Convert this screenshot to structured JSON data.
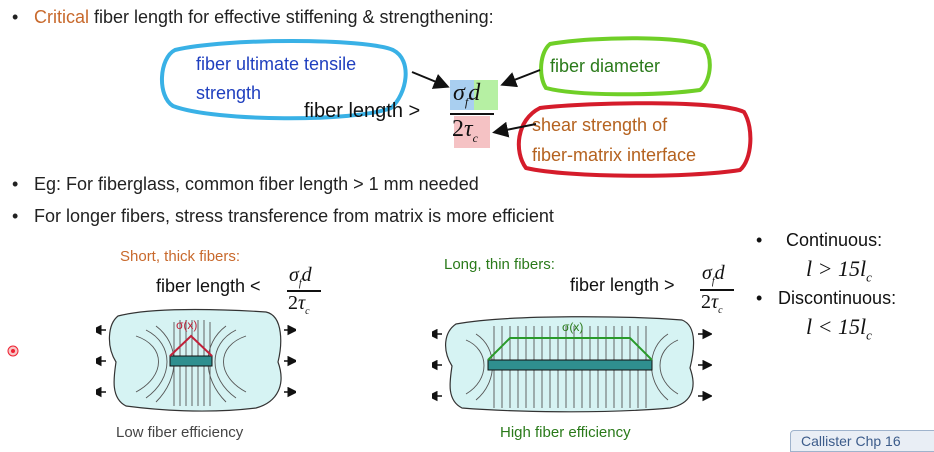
{
  "bullets": {
    "b1_highlight": "Critical",
    "b1_rest": " fiber length for effective stiffening & strengthening:",
    "b2": "Eg: For fiberglass, common fiber length > 1 mm needed",
    "b3": "For longer fibers, stress transference from matrix is more efficient"
  },
  "formula": {
    "lhs": "fiber  length >",
    "numerator_sigma": "σ",
    "numerator_sub": "f",
    "numerator_d": "d",
    "denominator_two": "2",
    "denominator_tau": "τ",
    "denominator_sub": "c"
  },
  "annotations": {
    "tensile_line1": "fiber ultimate tensile",
    "tensile_line2": "strength",
    "diameter": "fiber diameter",
    "shear_line1": "shear strength of",
    "shear_line2": "fiber-matrix interface"
  },
  "short_panel": {
    "title": "Short, thick fibers:",
    "lhs": "fiber  length <",
    "stress_label": "σ(x)",
    "caption": "Low fiber efficiency"
  },
  "long_panel": {
    "title": "Long, thin fibers:",
    "lhs": "fiber  length >",
    "stress_label": "σ(x)",
    "caption": "High fiber efficiency"
  },
  "side": {
    "continuous_label": "Continuous:",
    "continuous_expr": "l > 15l",
    "continuous_sub": "c",
    "discontinuous_label": "Discontinuous:",
    "discontinuous_expr": "l < 15l",
    "discontinuous_sub": "c"
  },
  "footer_tab": "Callister Chp 16",
  "colors": {
    "orange": "#c8692c",
    "blue_outline": "#39b1e6",
    "green_outline": "#6fcf27",
    "red_outline": "#d51c2b",
    "matrix_fill": "#d6f3f3",
    "fiber_fill": "#2f8f8f"
  }
}
